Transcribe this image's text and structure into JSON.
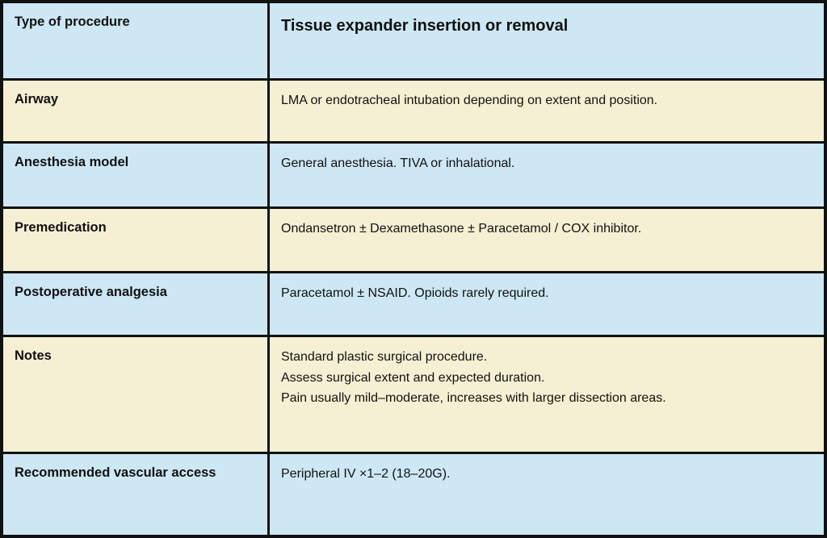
{
  "table": {
    "colors": {
      "row_blue": "#cde7f4",
      "row_cream": "#f5efd3",
      "border": "#111111",
      "text": "#111111"
    },
    "header": {
      "label": "Type of procedure",
      "value": "Tissue expander insertion or removal"
    },
    "rows": [
      {
        "label": "Airway",
        "value": "LMA or endotracheal intubation depending on extent and position."
      },
      {
        "label": "Anesthesia model",
        "value": "General anesthesia. TIVA or inhalational."
      },
      {
        "label": "Premedication",
        "value": "Ondansetron ± Dexamethasone ± Paracetamol / COX inhibitor."
      },
      {
        "label": "Postoperative analgesia",
        "value": "Paracetamol ± NSAID. Opioids rarely required."
      },
      {
        "label": "Notes",
        "value": "Standard plastic surgical procedure.\nAssess surgical extent and expected duration.\nPain usually mild–moderate, increases with larger dissection areas."
      },
      {
        "label": "Recommended vascular access",
        "value": "Peripheral IV ×1–2 (18–20G)."
      }
    ]
  }
}
